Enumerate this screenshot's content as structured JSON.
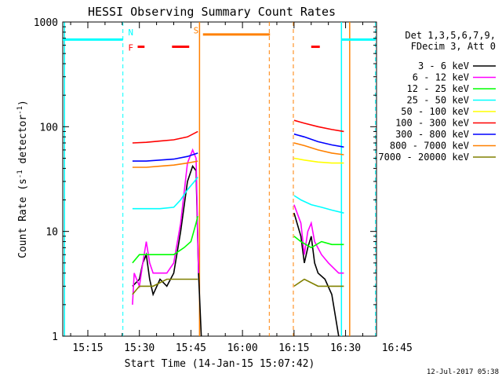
{
  "chart_data": {
    "type": "line",
    "title": "HESSI Observing Summary Count Rates",
    "xlabel": "Start Time (14-Jan-15 15:07:42)",
    "ylabel_main": "Count Rate (s",
    "ylabel_sup1": "-1",
    "ylabel_mid": " detector",
    "ylabel_sup2": "-1",
    "ylabel_end": ")",
    "footer": "12-Jul-2017 05:38",
    "yscale": "log",
    "ylim": [
      1,
      1000
    ],
    "xlim_minutes": [
      7.7,
      99.0
    ],
    "x_ticks": [
      {
        "label": "15:15",
        "m": 15
      },
      {
        "label": "15:30",
        "m": 30
      },
      {
        "label": "15:45",
        "m": 45
      },
      {
        "label": "16:00",
        "m": 60
      },
      {
        "label": "16:15",
        "m": 75
      },
      {
        "label": "16:30",
        "m": 90
      },
      {
        "label": "16:45",
        "m": 105
      }
    ],
    "y_ticks": [
      {
        "label": "1",
        "v": 1
      },
      {
        "label": "10",
        "v": 10
      },
      {
        "label": "100",
        "v": 100
      },
      {
        "label": "1000",
        "v": 1000
      }
    ],
    "legend_header": [
      "Det 1,3,5,6,7,9,",
      "FDecim 3, Att 0"
    ],
    "legend_position": "right",
    "series": [
      {
        "name": "3 - 6 keV",
        "color": "#000000",
        "points": [
          [
            28,
            3
          ],
          [
            30,
            3.5
          ],
          [
            31,
            5
          ],
          [
            32,
            6
          ],
          [
            33,
            3.5
          ],
          [
            34,
            2.5
          ],
          [
            36,
            3.5
          ],
          [
            38,
            3
          ],
          [
            40,
            4
          ],
          [
            42,
            10
          ],
          [
            44,
            30
          ],
          [
            45.5,
            42
          ],
          [
            46.5,
            38
          ],
          [
            47.2,
            4
          ],
          [
            48,
            1
          ],
          [
            75,
            15
          ],
          [
            77,
            9
          ],
          [
            78,
            5
          ],
          [
            79,
            7
          ],
          [
            80,
            9
          ],
          [
            81,
            5
          ],
          [
            82,
            4
          ],
          [
            84,
            3.5
          ],
          [
            86,
            2.5
          ],
          [
            88,
            1
          ]
        ]
      },
      {
        "name": "6 - 12 keV",
        "color": "#ff00ff",
        "points": [
          [
            28,
            2
          ],
          [
            28.5,
            4
          ],
          [
            30,
            3
          ],
          [
            31,
            5
          ],
          [
            32,
            8
          ],
          [
            33,
            5
          ],
          [
            34,
            4
          ],
          [
            36,
            4
          ],
          [
            38,
            4
          ],
          [
            40,
            5
          ],
          [
            42,
            12
          ],
          [
            44,
            45
          ],
          [
            45.5,
            60
          ],
          [
            46.5,
            50
          ],
          [
            47.2,
            4
          ],
          [
            75,
            18
          ],
          [
            77,
            12
          ],
          [
            78,
            6
          ],
          [
            79,
            10
          ],
          [
            80,
            12
          ],
          [
            81,
            8
          ],
          [
            83,
            6
          ],
          [
            85,
            5
          ],
          [
            88,
            4
          ],
          [
            89.5,
            4
          ]
        ]
      },
      {
        "name": "12 - 25 keV",
        "color": "#00ff00",
        "points": [
          [
            28,
            5
          ],
          [
            30,
            6
          ],
          [
            35,
            6
          ],
          [
            40,
            6
          ],
          [
            43,
            7
          ],
          [
            45,
            8
          ],
          [
            46.5,
            12
          ],
          [
            47,
            14
          ],
          [
            75,
            9
          ],
          [
            77,
            8
          ],
          [
            80,
            7
          ],
          [
            83,
            8
          ],
          [
            86,
            7.5
          ],
          [
            89.5,
            7.5
          ]
        ]
      },
      {
        "name": "25 - 50 keV",
        "color": "#00ffff",
        "points": [
          [
            28,
            16.5
          ],
          [
            32,
            16.5
          ],
          [
            36,
            16.5
          ],
          [
            40,
            17
          ],
          [
            42,
            20
          ],
          [
            44,
            25
          ],
          [
            46,
            30
          ],
          [
            47,
            33
          ],
          [
            75,
            22
          ],
          [
            77,
            20
          ],
          [
            80,
            18
          ],
          [
            83,
            17
          ],
          [
            86,
            16
          ],
          [
            89.5,
            15
          ]
        ]
      },
      {
        "name": "50 - 100 keV",
        "color": "#ffff00",
        "points": [
          [
            75,
            50
          ],
          [
            78,
            48
          ],
          [
            82,
            46
          ],
          [
            86,
            45
          ],
          [
            89.5,
            45
          ]
        ]
      },
      {
        "name": "100 - 300 keV",
        "color": "#ff0000",
        "points": [
          [
            28,
            70
          ],
          [
            32,
            71
          ],
          [
            36,
            73
          ],
          [
            40,
            75
          ],
          [
            44,
            80
          ],
          [
            47,
            90
          ],
          [
            75,
            115
          ],
          [
            78,
            108
          ],
          [
            82,
            100
          ],
          [
            86,
            94
          ],
          [
            89.5,
            90
          ]
        ]
      },
      {
        "name": "300 - 800 keV",
        "color": "#0000ff",
        "points": [
          [
            28,
            47
          ],
          [
            32,
            47
          ],
          [
            36,
            48
          ],
          [
            40,
            49
          ],
          [
            44,
            52
          ],
          [
            47,
            56
          ],
          [
            75,
            85
          ],
          [
            78,
            80
          ],
          [
            82,
            72
          ],
          [
            86,
            67
          ],
          [
            89.5,
            64
          ]
        ]
      },
      {
        "name": "800 - 7000 keV",
        "color": "#ff8000",
        "points": [
          [
            28,
            41
          ],
          [
            32,
            41
          ],
          [
            36,
            42
          ],
          [
            40,
            43
          ],
          [
            44,
            45
          ],
          [
            47,
            47
          ],
          [
            75,
            70
          ],
          [
            78,
            66
          ],
          [
            82,
            60
          ],
          [
            86,
            56
          ],
          [
            89.5,
            54
          ]
        ]
      },
      {
        "name": "7000 - 20000 keV",
        "color": "#808000",
        "points": [
          [
            28,
            2.5
          ],
          [
            30,
            3
          ],
          [
            34,
            3
          ],
          [
            38,
            3.5
          ],
          [
            42,
            3.5
          ],
          [
            47,
            3.5
          ],
          [
            75,
            3
          ],
          [
            78,
            3.5
          ],
          [
            82,
            3
          ],
          [
            86,
            3
          ],
          [
            89.5,
            3
          ]
        ]
      }
    ],
    "annotations": {
      "night_line": {
        "color": "#00ffff",
        "level": 680,
        "segments": [
          [
            7.7,
            25.2
          ],
          [
            88.8,
            98.7
          ]
        ]
      },
      "night_bounds": [
        8.2,
        88.8
      ],
      "night_dashed": [
        25.2,
        98.7
      ],
      "N_label": "N",
      "N_at": 27.5,
      "flare_line": {
        "color": "#ff0000",
        "level": 580,
        "segments": [
          [
            29.5,
            31.5
          ],
          [
            39.5,
            44.5
          ],
          [
            80,
            82.5
          ]
        ]
      },
      "F_label": "F",
      "F_at": 27.5,
      "saa_line": {
        "color": "#ff8000",
        "level": 760,
        "segments": [
          [
            48.5,
            68
          ]
        ]
      },
      "S_label": "S",
      "S_at": 46.5,
      "saa_bounds": [
        47.5,
        91.2
      ],
      "saa_dashed": [
        67.8,
        74.8
      ]
    }
  }
}
